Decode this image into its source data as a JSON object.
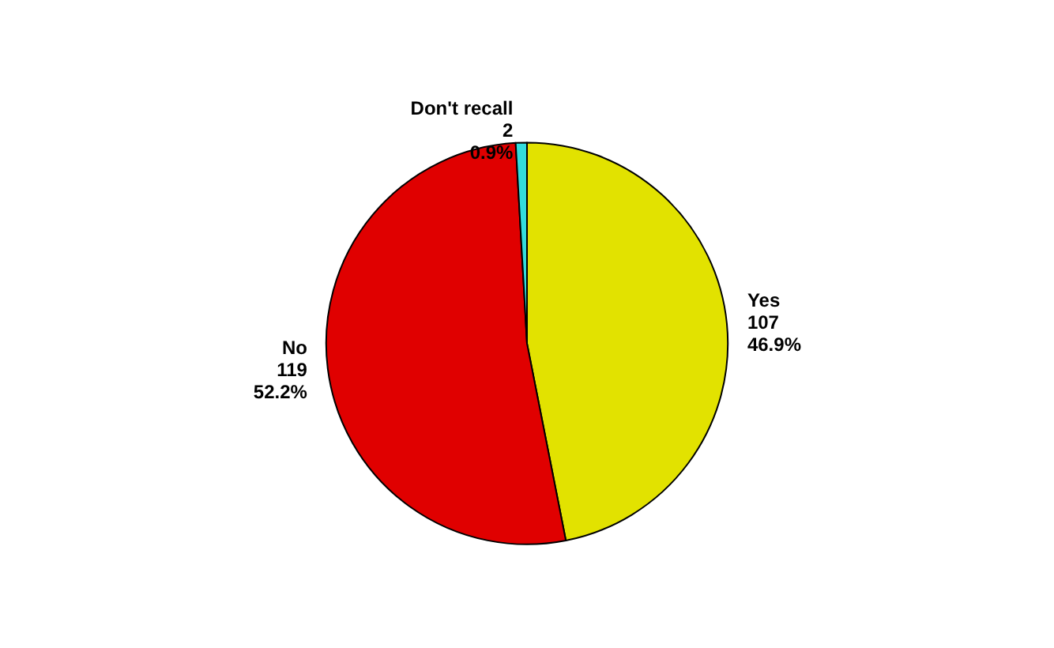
{
  "chart_data": {
    "type": "pie",
    "categories": [
      "Yes",
      "No",
      "Don't recall"
    ],
    "values": [
      46.9,
      52.2,
      0.9
    ],
    "colors": [
      "#e2e200",
      "#e00000",
      "#33dddd"
    ],
    "value_labels": [
      "107\n46.9%",
      "119\n52.2%",
      "2\n0.9%"
    ],
    "legend": false
  }
}
